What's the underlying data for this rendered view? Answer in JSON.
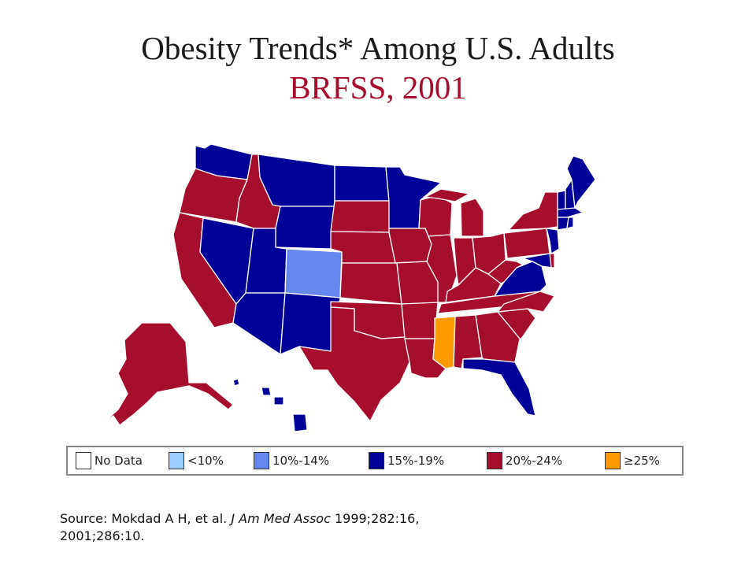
{
  "title": {
    "line1": "Obesity Trends* Among U.S. Adults",
    "line2": "BRFSS, 2001"
  },
  "colors": {
    "title_accent": "#a50f2d",
    "no_data": "#ffffff",
    "lt10": "#99ccff",
    "b10_14": "#6688ee",
    "b15_19": "#000099",
    "b20_24": "#a50f2d",
    "gte25": "#ff9900"
  },
  "legend": [
    {
      "label": "No Data",
      "key": "no_data"
    },
    {
      "label": "<10%",
      "key": "lt10"
    },
    {
      "label": "10%-14%",
      "key": "b10_14"
    },
    {
      "label": "15%-19%",
      "key": "b15_19"
    },
    {
      "label": "20%-24%",
      "key": "b20_24"
    },
    {
      "label": "≥25%",
      "key": "gte25"
    }
  ],
  "states": {
    "WA": "b15_19",
    "OR": "b20_24",
    "CA": "b20_24",
    "NV": "b15_19",
    "ID": "b20_24",
    "MT": "b15_19",
    "WY": "b15_19",
    "UT": "b15_19",
    "AZ": "b15_19",
    "CO": "b10_14",
    "NM": "b15_19",
    "ND": "b15_19",
    "SD": "b20_24",
    "NE": "b20_24",
    "KS": "b20_24",
    "OK": "b20_24",
    "TX": "b20_24",
    "MN": "b15_19",
    "IA": "b20_24",
    "MO": "b20_24",
    "AR": "b20_24",
    "LA": "b20_24",
    "WI": "b20_24",
    "IL": "b20_24",
    "MI": "b20_24",
    "IN": "b20_24",
    "OH": "b20_24",
    "KY": "b20_24",
    "TN": "b20_24",
    "MS": "gte25",
    "AL": "b20_24",
    "GA": "b20_24",
    "FL": "b15_19",
    "SC": "b20_24",
    "NC": "b20_24",
    "VA": "b15_19",
    "WV": "b20_24",
    "PA": "b20_24",
    "NY": "b20_24",
    "NJ": "b15_19",
    "MD": "b15_19",
    "DE": "b20_24",
    "CT": "b15_19",
    "RI": "b15_19",
    "MA": "b15_19",
    "VT": "b15_19",
    "NH": "b15_19",
    "ME": "b15_19",
    "AK": "b20_24",
    "HI": "b15_19"
  },
  "source": {
    "prefix": "Source: Mokdad A H, et al. ",
    "journal": "J Am Med Assoc",
    "suffix": " 1999;282:16,",
    "line2": "2001;286:10."
  }
}
